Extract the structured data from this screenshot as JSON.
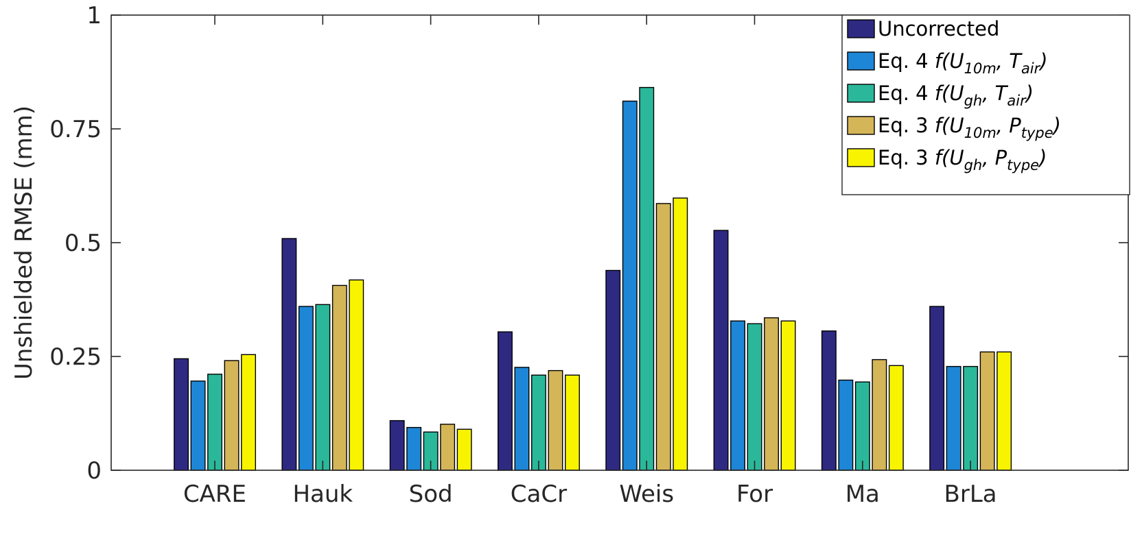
{
  "chart_data": {
    "type": "bar",
    "title": "",
    "xlabel": "",
    "ylabel": "Unshielded RMSE (mm)",
    "ylim": [
      0,
      1
    ],
    "yticks": [
      0,
      0.25,
      0.5,
      0.75,
      1
    ],
    "ytick_labels": [
      "0",
      "0.25",
      "0.5",
      "0.75",
      "1"
    ],
    "categories": [
      "CARE",
      "Hauk",
      "Sod",
      "CaCr",
      "Weis",
      "For",
      "Ma",
      "BrLa"
    ],
    "legend_position": "top-right",
    "grid": false,
    "series": [
      {
        "name": "Uncorrected",
        "color": "#2e2a82",
        "values": [
          0.245,
          0.509,
          0.109,
          0.304,
          0.439,
          0.527,
          0.306,
          0.36
        ]
      },
      {
        "name": "Eq. 4 f(U10m, Tair)",
        "legend": {
          "eq": "Eq. 4 ",
          "open": "f(U",
          "sub1": "10m",
          "mid": ", T",
          "sub2": "air",
          "close": ")"
        },
        "color": "#1e86d6",
        "values": [
          0.196,
          0.36,
          0.094,
          0.226,
          0.811,
          0.328,
          0.198,
          0.228
        ]
      },
      {
        "name": "Eq. 4 f(Ugh, Tair)",
        "legend": {
          "eq": "Eq. 4 ",
          "open": "f(U",
          "sub1": "gh",
          "mid": ", T",
          "sub2": "air",
          "close": ")"
        },
        "color": "#2bb89a",
        "values": [
          0.211,
          0.364,
          0.084,
          0.209,
          0.841,
          0.322,
          0.194,
          0.228
        ]
      },
      {
        "name": "Eq. 3 f(U10m, Ptype)",
        "legend": {
          "eq": "Eq. 3 ",
          "open": "f(U",
          "sub1": "10m",
          "mid": ", P",
          "sub2": "type",
          "close": ")"
        },
        "color": "#d4b558",
        "values": [
          0.241,
          0.406,
          0.101,
          0.219,
          0.586,
          0.335,
          0.243,
          0.26
        ]
      },
      {
        "name": "Eq. 3 f(Ugh, Ptype)",
        "legend": {
          "eq": "Eq. 3 ",
          "open": "f(U",
          "sub1": "gh",
          "mid": ", P",
          "sub2": "type",
          "close": ")"
        },
        "color": "#f8f400",
        "values": [
          0.254,
          0.418,
          0.09,
          0.209,
          0.598,
          0.328,
          0.23,
          0.26
        ]
      }
    ]
  }
}
